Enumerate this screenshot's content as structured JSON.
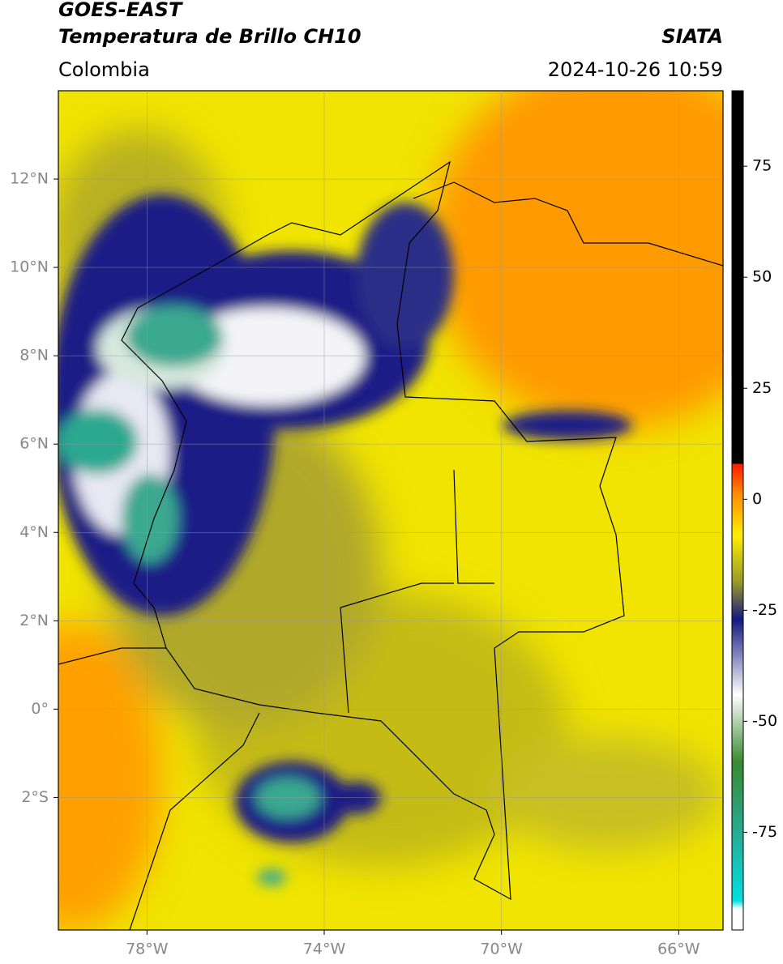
{
  "header": {
    "title": "GOES-EAST",
    "subtitle": "Temperatura de Brillo CH10",
    "source": "SIATA",
    "region": "Colombia",
    "timestamp": "2024-10-26 10:59"
  },
  "map": {
    "xlim": [
      -80,
      -65
    ],
    "ylim": [
      -5,
      14
    ],
    "xticks": [
      {
        "value": -78,
        "label": "78°W"
      },
      {
        "value": -74,
        "label": "74°W"
      },
      {
        "value": -70,
        "label": "70°W"
      },
      {
        "value": -66,
        "label": "66°W"
      }
    ],
    "yticks": [
      {
        "value": 12,
        "label": "12°N"
      },
      {
        "value": 10,
        "label": "10°N"
      },
      {
        "value": 8,
        "label": "8°N"
      },
      {
        "value": 6,
        "label": "6°N"
      },
      {
        "value": 4,
        "label": "4°N"
      },
      {
        "value": 2,
        "label": "2°N"
      },
      {
        "value": 0,
        "label": "0°"
      },
      {
        "value": -2,
        "label": "2°S"
      }
    ],
    "grid": true
  },
  "colorbar": {
    "lim": [
      -97,
      92
    ],
    "ticks": [
      75,
      50,
      25,
      0,
      -25,
      -50,
      -75
    ]
  }
}
